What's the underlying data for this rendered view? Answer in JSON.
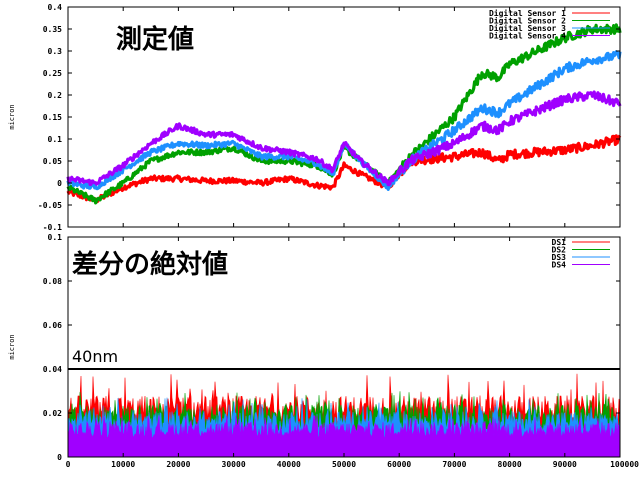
{
  "chart_data": [
    {
      "type": "line",
      "title": "測定値",
      "xlabel": "",
      "ylabel": "micron",
      "xlim": [
        0,
        100000
      ],
      "ylim": [
        -0.1,
        0.4
      ],
      "yticks": [
        -0.1,
        -0.05,
        0,
        0.05,
        0.1,
        0.15,
        0.2,
        0.25,
        0.3,
        0.35,
        0.4
      ],
      "ytick_labels": [
        "-0.1",
        "-0.05",
        "0",
        "0.05",
        "0.1",
        "0.15",
        "0.2",
        "0.25",
        "0.3",
        "0.35",
        "0.4"
      ],
      "grid": false,
      "legend_position": "top-right",
      "series": [
        {
          "name": "Digital Sensor 1",
          "color": "#ff0000",
          "x": [
            0,
            5000,
            10000,
            15000,
            20000,
            25000,
            30000,
            35000,
            40000,
            45000,
            48000,
            50000,
            53000,
            58000,
            62000,
            70000,
            75000,
            78000,
            80000,
            85000,
            90000,
            95000,
            100000
          ],
          "y": [
            -0.02,
            -0.04,
            -0.01,
            0.01,
            0.01,
            0.005,
            0.005,
            0.0,
            0.01,
            -0.005,
            -0.01,
            0.04,
            0.02,
            -0.01,
            0.05,
            0.06,
            0.07,
            0.05,
            0.065,
            0.07,
            0.075,
            0.085,
            0.1
          ]
        },
        {
          "name": "Digital Sensor 2",
          "color": "#00a000",
          "x": [
            0,
            5000,
            10000,
            15000,
            20000,
            25000,
            30000,
            35000,
            40000,
            45000,
            48000,
            50000,
            53000,
            58000,
            62000,
            70000,
            75000,
            78000,
            80000,
            85000,
            90000,
            95000,
            100000
          ],
          "y": [
            -0.01,
            -0.04,
            0.0,
            0.05,
            0.07,
            0.07,
            0.08,
            0.05,
            0.05,
            0.04,
            0.02,
            0.08,
            0.05,
            0.0,
            0.06,
            0.15,
            0.25,
            0.24,
            0.27,
            0.3,
            0.33,
            0.35,
            0.35
          ]
        },
        {
          "name": "Digital Sensor 3",
          "color": "#1e90ff",
          "x": [
            0,
            5000,
            10000,
            15000,
            20000,
            25000,
            30000,
            35000,
            40000,
            45000,
            48000,
            50000,
            53000,
            58000,
            62000,
            70000,
            75000,
            78000,
            80000,
            85000,
            90000,
            95000,
            100000
          ],
          "y": [
            0.0,
            -0.01,
            0.03,
            0.07,
            0.09,
            0.085,
            0.09,
            0.06,
            0.06,
            0.045,
            0.02,
            0.09,
            0.05,
            -0.01,
            0.05,
            0.12,
            0.17,
            0.16,
            0.18,
            0.22,
            0.26,
            0.28,
            0.29
          ]
        },
        {
          "name": "Digital Sensor 4",
          "color": "#a000ff",
          "x": [
            0,
            5000,
            10000,
            15000,
            20000,
            25000,
            30000,
            35000,
            40000,
            45000,
            48000,
            50000,
            53000,
            58000,
            62000,
            70000,
            75000,
            78000,
            80000,
            85000,
            90000,
            95000,
            100000
          ],
          "y": [
            0.01,
            0.0,
            0.04,
            0.09,
            0.13,
            0.11,
            0.11,
            0.08,
            0.07,
            0.055,
            0.03,
            0.09,
            0.05,
            0.0,
            0.05,
            0.09,
            0.13,
            0.12,
            0.14,
            0.165,
            0.19,
            0.2,
            0.18
          ]
        }
      ]
    },
    {
      "type": "line",
      "title": "差分の絶対値",
      "annotation": "40nm",
      "xlabel": "",
      "ylabel": "micron",
      "xlim": [
        0,
        100000
      ],
      "ylim": [
        0,
        0.1
      ],
      "yticks": [
        0,
        0.02,
        0.04,
        0.06,
        0.08,
        0.1
      ],
      "ytick_labels": [
        "0",
        "0.02",
        "0.04",
        "0.06",
        "0.08",
        "0.1"
      ],
      "xticks": [
        0,
        10000,
        20000,
        30000,
        40000,
        50000,
        60000,
        70000,
        80000,
        90000,
        100000
      ],
      "xtick_labels": [
        "0",
        "10000",
        "20000",
        "30000",
        "40000",
        "50000",
        "60000",
        "70000",
        "80000",
        "90000",
        "100000"
      ],
      "reference_line": 0.04,
      "grid": false,
      "legend_position": "top-right",
      "series": [
        {
          "name": "DS1",
          "color": "#ff0000",
          "typical_max": 0.028,
          "peak_max": 0.038
        },
        {
          "name": "DS2",
          "color": "#00a000",
          "typical_max": 0.024,
          "peak_max": 0.03
        },
        {
          "name": "DS3",
          "color": "#1e90ff",
          "typical_max": 0.021,
          "peak_max": 0.027
        },
        {
          "name": "DS4",
          "color": "#a000ff",
          "typical_max": 0.016,
          "peak_max": 0.019
        }
      ]
    }
  ]
}
